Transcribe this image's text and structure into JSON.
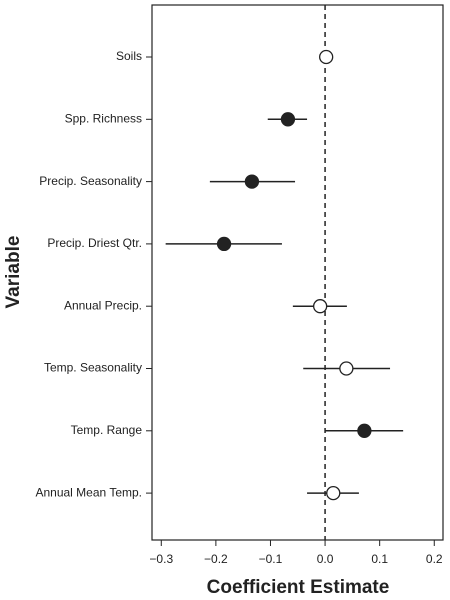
{
  "chart_data": {
    "type": "dot",
    "xlabel": "Coefficient Estimate",
    "ylabel": "Variable",
    "categories": [
      "Soils",
      "Spp. Richness",
      "Precip. Seasonality",
      "Precip. Driest Qtr.",
      "Annual Precip.",
      "Temp. Seasonality",
      "Temp. Range",
      "Annual Mean Temp."
    ],
    "values": [
      0.002,
      -0.068,
      -0.134,
      -0.185,
      -0.009,
      0.039,
      0.072,
      0.015
    ],
    "lower": [
      0.002,
      -0.105,
      -0.211,
      -0.292,
      -0.059,
      -0.04,
      0.0,
      -0.033
    ],
    "upper": [
      0.002,
      -0.033,
      -0.055,
      -0.079,
      0.04,
      0.119,
      0.143,
      0.062
    ],
    "fills": [
      "#ffffff",
      "#222222",
      "#222222",
      "#222222",
      "#ffffff",
      "#ffffff",
      "#222222",
      "#ffffff"
    ],
    "xlim": [
      -0.317,
      0.216
    ],
    "xticks": [
      {
        "value": -0.3,
        "label": "−0.3"
      },
      {
        "value": -0.2,
        "label": "−0.2"
      },
      {
        "value": -0.1,
        "label": "−0.1"
      },
      {
        "value": 0,
        "label": "0.0"
      },
      0.1,
      0.2
    ],
    "refline": 0
  }
}
